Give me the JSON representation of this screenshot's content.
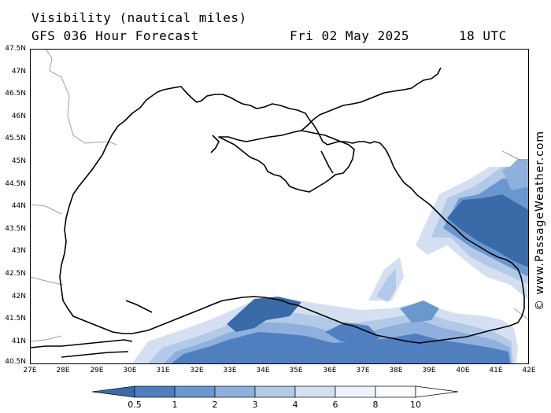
{
  "header": {
    "title": "Visibility (nautical miles)",
    "subtitle": "GFS 036 Hour Forecast",
    "date": "Fri 02 May 2025",
    "time": "18 UTC"
  },
  "watermark": "© www.PassageWeather.com",
  "axes": {
    "lat_labels": [
      "47.5N",
      "47N",
      "46.5N",
      "46N",
      "45.5N",
      "45N",
      "44.5N",
      "44N",
      "43.5N",
      "43N",
      "42.5N",
      "42N",
      "41.5N",
      "41N",
      "40.5N"
    ],
    "lon_labels": [
      "27E",
      "28E",
      "29E",
      "30E",
      "31E",
      "32E",
      "33E",
      "34E",
      "35E",
      "36E",
      "37E",
      "38E",
      "39E",
      "40E",
      "41E",
      "42E"
    ]
  },
  "legend": {
    "labels": [
      "0.5",
      "1",
      "2",
      "3",
      "4",
      "6",
      "8",
      "10"
    ],
    "colors": [
      "#3a6aa8",
      "#4f7fbf",
      "#6b97cf",
      "#8fb0dc",
      "#b3c9e8",
      "#d4e0f2",
      "#eef3fb",
      "#ffffff"
    ]
  },
  "map": {
    "region": "Black Sea",
    "extent": {
      "lon": [
        27,
        42
      ],
      "lat": [
        40.5,
        47.5
      ]
    },
    "colors": {
      "coast": "#000000",
      "border": "#a0a0a0",
      "sea": "#ffffff"
    }
  }
}
